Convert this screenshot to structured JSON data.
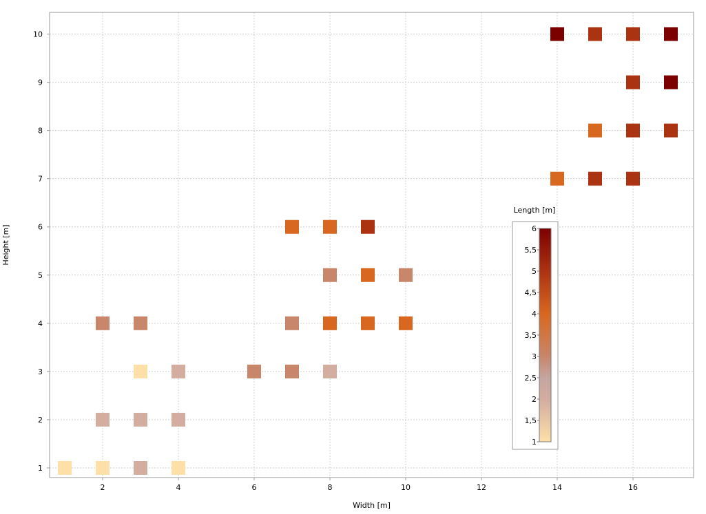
{
  "chart_data": {
    "type": "heatmap",
    "title": "",
    "xlabel": "Width [m]",
    "ylabel": "Height [m]",
    "xlim": [
      0.6,
      17.6
    ],
    "ylim": [
      0.8,
      10.45
    ],
    "x_ticks": [
      "2",
      "4",
      "6",
      "8",
      "10",
      "12",
      "14",
      "16"
    ],
    "y_ticks": [
      "1",
      "2",
      "3",
      "4",
      "5",
      "6",
      "7",
      "8",
      "9",
      "10"
    ],
    "grid": true,
    "legend": {
      "title": "Length [m]",
      "placement": "center-right",
      "min": 1,
      "max": 6,
      "tick_labels": [
        "1",
        "1,5",
        "2",
        "2,5",
        "3",
        "3,5",
        "4",
        "4,5",
        "5",
        "5,5",
        "6"
      ]
    },
    "colorscale": [
      {
        "value": 1,
        "color": "#fde0a8"
      },
      {
        "value": 2,
        "color": "#d2ada0"
      },
      {
        "value": 2.5,
        "color": "#c4a5a0"
      },
      {
        "value": 3,
        "color": "#c8866a"
      },
      {
        "value": 4,
        "color": "#d8671f"
      },
      {
        "value": 5,
        "color": "#ab3312"
      },
      {
        "value": 6,
        "color": "#7c0000"
      }
    ],
    "points": [
      {
        "x": 1,
        "y": 1,
        "value": 1
      },
      {
        "x": 2,
        "y": 1,
        "value": 1
      },
      {
        "x": 3,
        "y": 1,
        "value": 2
      },
      {
        "x": 4,
        "y": 1,
        "value": 1
      },
      {
        "x": 2,
        "y": 2,
        "value": 2
      },
      {
        "x": 3,
        "y": 2,
        "value": 2
      },
      {
        "x": 4,
        "y": 2,
        "value": 2
      },
      {
        "x": 3,
        "y": 3,
        "value": 1
      },
      {
        "x": 4,
        "y": 3,
        "value": 2
      },
      {
        "x": 6,
        "y": 3,
        "value": 3
      },
      {
        "x": 7,
        "y": 3,
        "value": 3
      },
      {
        "x": 8,
        "y": 3,
        "value": 2
      },
      {
        "x": 2,
        "y": 4,
        "value": 3
      },
      {
        "x": 3,
        "y": 4,
        "value": 3
      },
      {
        "x": 7,
        "y": 4,
        "value": 3
      },
      {
        "x": 8,
        "y": 4,
        "value": 4
      },
      {
        "x": 9,
        "y": 4,
        "value": 4
      },
      {
        "x": 10,
        "y": 4,
        "value": 4
      },
      {
        "x": 8,
        "y": 5,
        "value": 3
      },
      {
        "x": 9,
        "y": 5,
        "value": 4
      },
      {
        "x": 10,
        "y": 5,
        "value": 3
      },
      {
        "x": 7,
        "y": 6,
        "value": 4
      },
      {
        "x": 8,
        "y": 6,
        "value": 4
      },
      {
        "x": 9,
        "y": 6,
        "value": 5
      },
      {
        "x": 14,
        "y": 7,
        "value": 4
      },
      {
        "x": 15,
        "y": 7,
        "value": 5
      },
      {
        "x": 16,
        "y": 7,
        "value": 5
      },
      {
        "x": 15,
        "y": 8,
        "value": 4
      },
      {
        "x": 16,
        "y": 8,
        "value": 5
      },
      {
        "x": 17,
        "y": 8,
        "value": 5
      },
      {
        "x": 16,
        "y": 9,
        "value": 5
      },
      {
        "x": 17,
        "y": 9,
        "value": 6
      },
      {
        "x": 14,
        "y": 10,
        "value": 6
      },
      {
        "x": 15,
        "y": 10,
        "value": 5
      },
      {
        "x": 16,
        "y": 10,
        "value": 5
      },
      {
        "x": 17,
        "y": 10,
        "value": 6
      }
    ]
  }
}
